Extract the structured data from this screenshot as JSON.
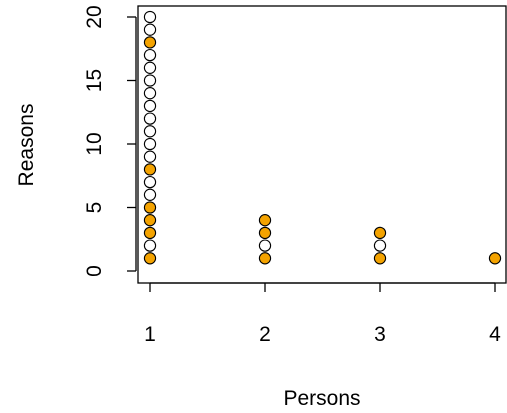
{
  "chart_data": {
    "type": "scatter",
    "title": "",
    "xlabel": "Persons",
    "ylabel": "Reasons",
    "xlim": [
      1,
      4
    ],
    "ylim": [
      0,
      20
    ],
    "x_ticks": [
      1,
      2,
      3,
      4
    ],
    "y_ticks": [
      0,
      5,
      10,
      15,
      20
    ],
    "grid": false,
    "legend": "none",
    "colors": {
      "filled": "#f4a300",
      "hollow": "#ffffff",
      "outline": "#000000"
    },
    "points": [
      {
        "x": 1,
        "y": 1,
        "filled": true
      },
      {
        "x": 1,
        "y": 2,
        "filled": false
      },
      {
        "x": 1,
        "y": 3,
        "filled": true
      },
      {
        "x": 1,
        "y": 4,
        "filled": true
      },
      {
        "x": 1,
        "y": 5,
        "filled": true
      },
      {
        "x": 1,
        "y": 6,
        "filled": false
      },
      {
        "x": 1,
        "y": 7,
        "filled": false
      },
      {
        "x": 1,
        "y": 8,
        "filled": true
      },
      {
        "x": 1,
        "y": 9,
        "filled": false
      },
      {
        "x": 1,
        "y": 10,
        "filled": false
      },
      {
        "x": 1,
        "y": 11,
        "filled": false
      },
      {
        "x": 1,
        "y": 12,
        "filled": false
      },
      {
        "x": 1,
        "y": 13,
        "filled": false
      },
      {
        "x": 1,
        "y": 14,
        "filled": false
      },
      {
        "x": 1,
        "y": 15,
        "filled": false
      },
      {
        "x": 1,
        "y": 16,
        "filled": false
      },
      {
        "x": 1,
        "y": 17,
        "filled": false
      },
      {
        "x": 1,
        "y": 18,
        "filled": true
      },
      {
        "x": 1,
        "y": 19,
        "filled": false
      },
      {
        "x": 1,
        "y": 20,
        "filled": false
      },
      {
        "x": 2,
        "y": 1,
        "filled": true
      },
      {
        "x": 2,
        "y": 2,
        "filled": false
      },
      {
        "x": 2,
        "y": 3,
        "filled": true
      },
      {
        "x": 2,
        "y": 4,
        "filled": true
      },
      {
        "x": 3,
        "y": 1,
        "filled": true
      },
      {
        "x": 3,
        "y": 2,
        "filled": false
      },
      {
        "x": 3,
        "y": 3,
        "filled": true
      },
      {
        "x": 4,
        "y": 1,
        "filled": true
      }
    ]
  }
}
